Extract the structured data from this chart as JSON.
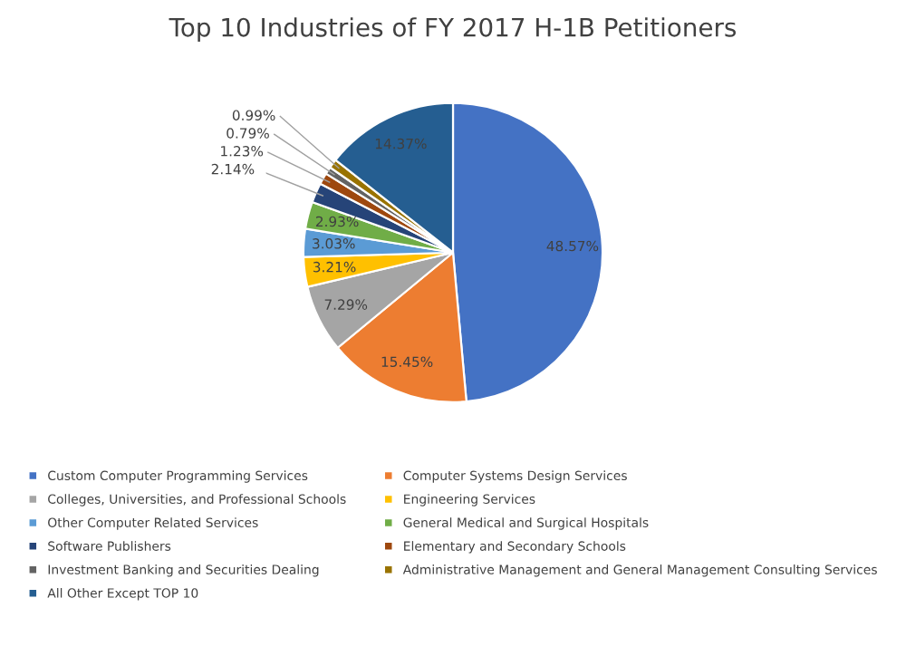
{
  "chart_data": {
    "type": "pie",
    "title": "Top 10 Industries of FY 2017 H-1B Petitioners",
    "categories": [
      "Custom Computer Programming Services",
      "Computer Systems Design Services",
      "Colleges, Universities, and Professional Schools",
      "Engineering Services",
      "Other Computer Related Services",
      "General Medical and Surgical Hospitals",
      "Software Publishers",
      "Elementary and Secondary Schools",
      "Investment Banking and Securities Dealing",
      "Administrative Management and General Management Consulting Services",
      "All Other Except TOP 10"
    ],
    "values": [
      48.57,
      15.45,
      7.29,
      3.21,
      3.03,
      2.93,
      2.14,
      1.23,
      0.79,
      0.99,
      14.37
    ],
    "colors": [
      "#4472c4",
      "#ed7d31",
      "#a5a5a5",
      "#ffc000",
      "#5b9bd5",
      "#70ad47",
      "#264478",
      "#9e480e",
      "#636363",
      "#997300",
      "#255e91"
    ],
    "value_labels": [
      "48.57%",
      "15.45%",
      "7.29%",
      "3.21%",
      "3.03%",
      "2.93%",
      "2.14%",
      "1.23%",
      "0.79%",
      "0.99%",
      "14.37%"
    ],
    "legend": "bottom"
  }
}
